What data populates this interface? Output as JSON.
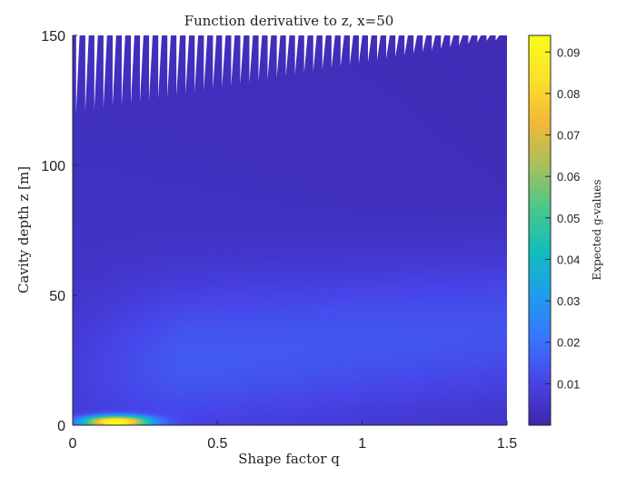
{
  "chart_data": {
    "type": "heatmap",
    "title": "Function derivative to z, x=50",
    "xlabel": "Shape factor q",
    "ylabel": "Cavity depth z [m]",
    "xlim": [
      0,
      1.5
    ],
    "ylim": [
      0,
      150
    ],
    "x_ticks": [
      "0",
      "0.5",
      "1",
      "1.5"
    ],
    "y_ticks": [
      "0",
      "50",
      "100",
      "150"
    ],
    "colorbar": {
      "label": "Expected g-values",
      "range": [
        0,
        0.094
      ],
      "ticks": [
        "0.01",
        "0.02",
        "0.03",
        "0.04",
        "0.05",
        "0.06",
        "0.07",
        "0.08",
        "0.09"
      ],
      "colormap": "parula"
    },
    "peak": {
      "q": 0.15,
      "z": 1.5,
      "value": 0.094
    },
    "grid": false
  },
  "colormap_stops": [
    "#3e26a8",
    "#4744e8",
    "#3a74fe",
    "#1e9ded",
    "#12bdbd",
    "#49c78c",
    "#a8c05a",
    "#f3b838",
    "#fbe12b",
    "#f9fb15"
  ]
}
